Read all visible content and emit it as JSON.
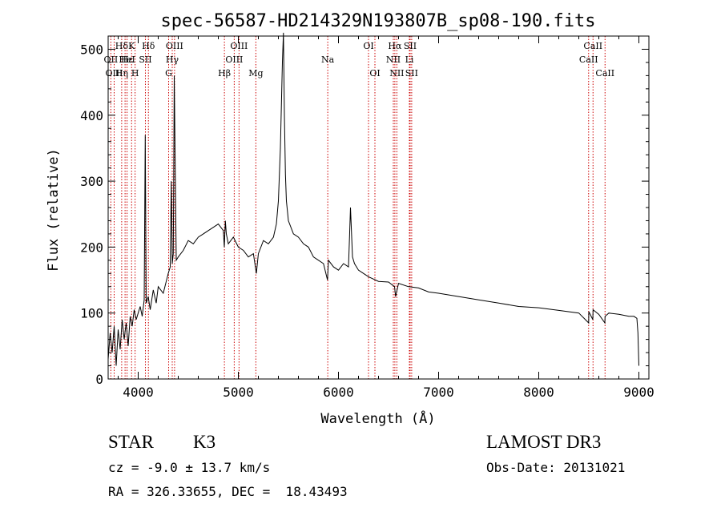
{
  "chart_data": {
    "type": "line",
    "title": "spec-56587-HD214329N193807B_sp08-190.fits",
    "xlabel": "Wavelength (Å)",
    "ylabel": "Flux (relative)",
    "xlim": [
      3700,
      9100
    ],
    "ylim": [
      0,
      520
    ],
    "x_ticks": [
      4000,
      5000,
      6000,
      7000,
      8000,
      9000
    ],
    "y_ticks": [
      0,
      100,
      200,
      300,
      400,
      500
    ],
    "grid": false,
    "series": [
      {
        "x": [
          3700,
          3720,
          3740,
          3760,
          3780,
          3800,
          3820,
          3840,
          3860,
          3880,
          3900,
          3920,
          3940,
          3960,
          3980,
          4000,
          4020,
          4040,
          4060,
          4070,
          4080,
          4100,
          4120,
          4150,
          4180,
          4200,
          4250,
          4300,
          4320,
          4330,
          4340,
          4350,
          4360,
          4380,
          4400,
          4450,
          4500,
          4550,
          4600,
          4650,
          4700,
          4750,
          4800,
          4850,
          4860,
          4870,
          4880,
          4900,
          4950,
          5000,
          5050,
          5100,
          5150,
          5180,
          5200,
          5250,
          5300,
          5350,
          5380,
          5400,
          5420,
          5440,
          5450,
          5460,
          5470,
          5480,
          5500,
          5550,
          5600,
          5650,
          5700,
          5750,
          5800,
          5850,
          5890,
          5900,
          5950,
          6000,
          6050,
          6100,
          6110,
          6120,
          6140,
          6160,
          6200,
          6250,
          6300,
          6400,
          6500,
          6560,
          6570,
          6600,
          6700,
          6800,
          6900,
          7000,
          7200,
          7400,
          7600,
          7800,
          8000,
          8200,
          8400,
          8498,
          8500,
          8540,
          8542,
          8600,
          8660,
          8662,
          8700,
          8800,
          8900,
          8950,
          8980,
          8990,
          9000
        ],
        "y": [
          30,
          70,
          40,
          80,
          20,
          75,
          45,
          90,
          60,
          85,
          50,
          95,
          80,
          105,
          90,
          100,
          110,
          95,
          120,
          370,
          115,
          125,
          105,
          135,
          115,
          140,
          130,
          160,
          170,
          300,
          175,
          190,
          460,
          180,
          185,
          195,
          210,
          205,
          215,
          220,
          225,
          230,
          235,
          225,
          200,
          240,
          220,
          205,
          215,
          200,
          195,
          185,
          190,
          160,
          190,
          210,
          205,
          215,
          235,
          270,
          350,
          480,
          525,
          400,
          310,
          270,
          240,
          220,
          215,
          205,
          200,
          185,
          180,
          175,
          150,
          180,
          170,
          165,
          175,
          170,
          215,
          260,
          185,
          175,
          165,
          160,
          155,
          148,
          147,
          140,
          125,
          145,
          140,
          138,
          132,
          130,
          125,
          120,
          115,
          110,
          108,
          104,
          100,
          85,
          102,
          90,
          105,
          98,
          85,
          95,
          100,
          98,
          95,
          95,
          92,
          70,
          20
        ]
      }
    ],
    "line_labels": [
      {
        "name": "Hδ",
        "wl": 3835,
        "row": 0
      },
      {
        "name": "OII",
        "wl": 3727,
        "row": 1
      },
      {
        "name": "OIII",
        "wl": 3760,
        "row": 2
      },
      {
        "name": "Hε",
        "wl": 3889,
        "row": 1
      },
      {
        "name": "HeI",
        "wl": 3889,
        "row": 1
      },
      {
        "name": "Hη",
        "wl": 3835,
        "row": 2
      },
      {
        "name": "K",
        "wl": 3934,
        "row": 0
      },
      {
        "name": "H",
        "wl": 3969,
        "row": 2
      },
      {
        "name": "SII",
        "wl": 4072,
        "row": 1
      },
      {
        "name": "Hδ",
        "wl": 4102,
        "row": 0
      },
      {
        "name": "OIII",
        "wl": 4363,
        "row": 0
      },
      {
        "name": "Hγ",
        "wl": 4340,
        "row": 1
      },
      {
        "name": "G",
        "wl": 4304,
        "row": 2
      },
      {
        "name": "Hβ",
        "wl": 4861,
        "row": 2
      },
      {
        "name": "OIII",
        "wl": 5007,
        "row": 0
      },
      {
        "name": "OIII",
        "wl": 4959,
        "row": 1
      },
      {
        "name": "Mg",
        "wl": 5175,
        "row": 2
      },
      {
        "name": "Na",
        "wl": 5893,
        "row": 1
      },
      {
        "name": "OI",
        "wl": 6300,
        "row": 0
      },
      {
        "name": "OI",
        "wl": 6364,
        "row": 2
      },
      {
        "name": "Hα",
        "wl": 6563,
        "row": 0
      },
      {
        "name": "SII",
        "wl": 6716,
        "row": 0
      },
      {
        "name": "NII",
        "wl": 6548,
        "row": 1
      },
      {
        "name": "Li",
        "wl": 6708,
        "row": 1
      },
      {
        "name": "NII",
        "wl": 6583,
        "row": 2
      },
      {
        "name": "SII",
        "wl": 6731,
        "row": 2
      },
      {
        "name": "CaII",
        "wl": 8542,
        "row": 0
      },
      {
        "name": "CaII",
        "wl": 8498,
        "row": 1
      },
      {
        "name": "CaII",
        "wl": 8662,
        "row": 2
      }
    ],
    "line_marker_wls": [
      3727,
      3760,
      3835,
      3869,
      3889,
      3934,
      3969,
      4072,
      4102,
      4304,
      4340,
      4363,
      4861,
      4959,
      5007,
      5175,
      5893,
      6300,
      6364,
      6548,
      6563,
      6583,
      6708,
      6716,
      6731,
      8498,
      8542,
      8662
    ],
    "colors": {
      "spectrum": "#000000",
      "line_markers": "#cc0000"
    }
  },
  "footer": {
    "object_class": "STAR",
    "subclass": "K3",
    "survey": "LAMOST DR3",
    "redshift": "cz = -9.0 ± 13.7 km/s",
    "obs_date": "Obs-Date: 20131021",
    "coords": "RA = 326.33655, DEC =  18.43493"
  }
}
